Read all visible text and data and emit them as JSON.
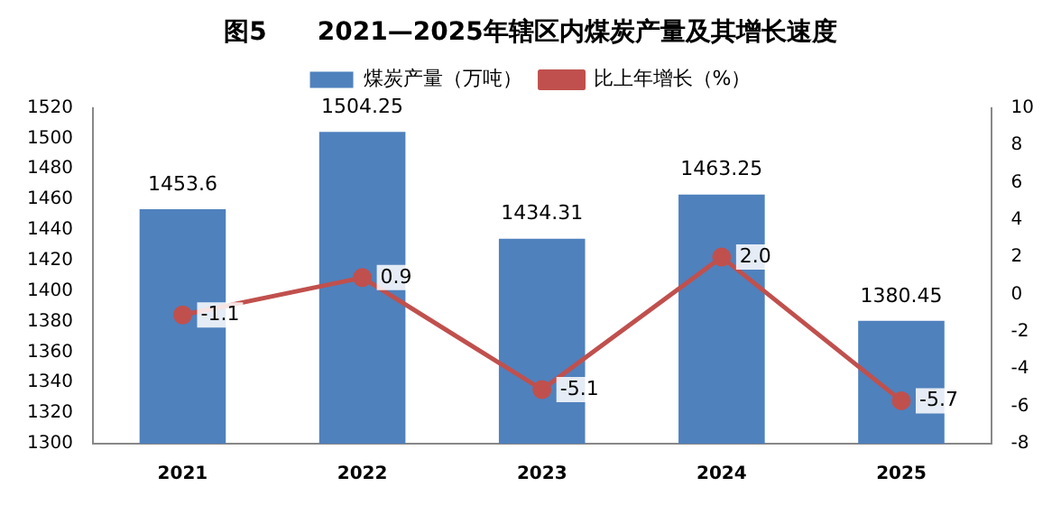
{
  "chart_data": {
    "type": "bar",
    "title": "图5　　2021—2025年辖区内煤炭产量及其增长速度",
    "categories": [
      "2021",
      "2022",
      "2023",
      "2024",
      "2025"
    ],
    "series": [
      {
        "name": "煤炭产量（万吨）",
        "color": "#4f81bd",
        "values": [
          1453.6,
          1504.25,
          1434.31,
          1463.25,
          1380.45
        ],
        "value_labels": [
          "1453.6",
          "1504.25",
          "1434.31",
          "1463.25",
          "1380.45"
        ]
      },
      {
        "name": "比上年增长（%）",
        "type": "line",
        "axis": "y2",
        "color": "#c0504d",
        "marker": "circle",
        "values": [
          -1.1,
          0.9,
          -5.1,
          2.0,
          -5.7
        ],
        "value_labels": [
          "-1.1",
          "0.9",
          "-5.1",
          "2.0",
          "-5.7"
        ]
      }
    ],
    "ylim": [
      1300,
      1520
    ],
    "yticks": [
      1300,
      1320,
      1340,
      1360,
      1380,
      1400,
      1420,
      1440,
      1460,
      1480,
      1500,
      1520
    ],
    "y2lim": [
      -8,
      10
    ],
    "y2ticks": [
      -8,
      -6,
      -4,
      -2,
      0,
      2,
      4,
      6,
      8,
      10
    ],
    "legend": "top",
    "grid": false
  }
}
